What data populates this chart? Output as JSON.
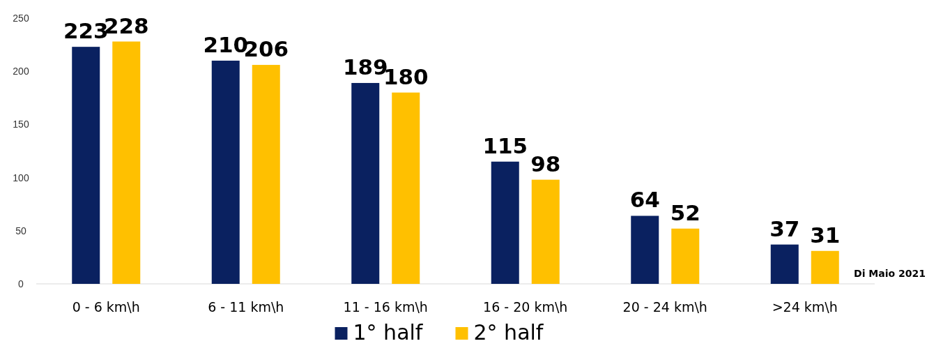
{
  "chart_data": {
    "type": "bar",
    "categories": [
      "0 - 6 km\\h",
      "6 - 11 km\\h",
      "11 - 16 km\\h",
      "16 - 20 km\\h",
      "20 - 24 km\\h",
      ">24 km\\h"
    ],
    "series": [
      {
        "name": "1° half",
        "color": "#0a2160",
        "values": [
          223,
          210,
          189,
          115,
          64,
          37
        ]
      },
      {
        "name": "2° half",
        "color": "#ffc000",
        "values": [
          228,
          206,
          180,
          98,
          52,
          31
        ]
      }
    ],
    "ylim": [
      0,
      250
    ],
    "yticks": [
      0,
      50,
      100,
      150,
      200,
      250
    ],
    "data_labels": true,
    "grid": false,
    "legend": "bottom",
    "annotations": [
      "Di Maio 2021"
    ]
  }
}
